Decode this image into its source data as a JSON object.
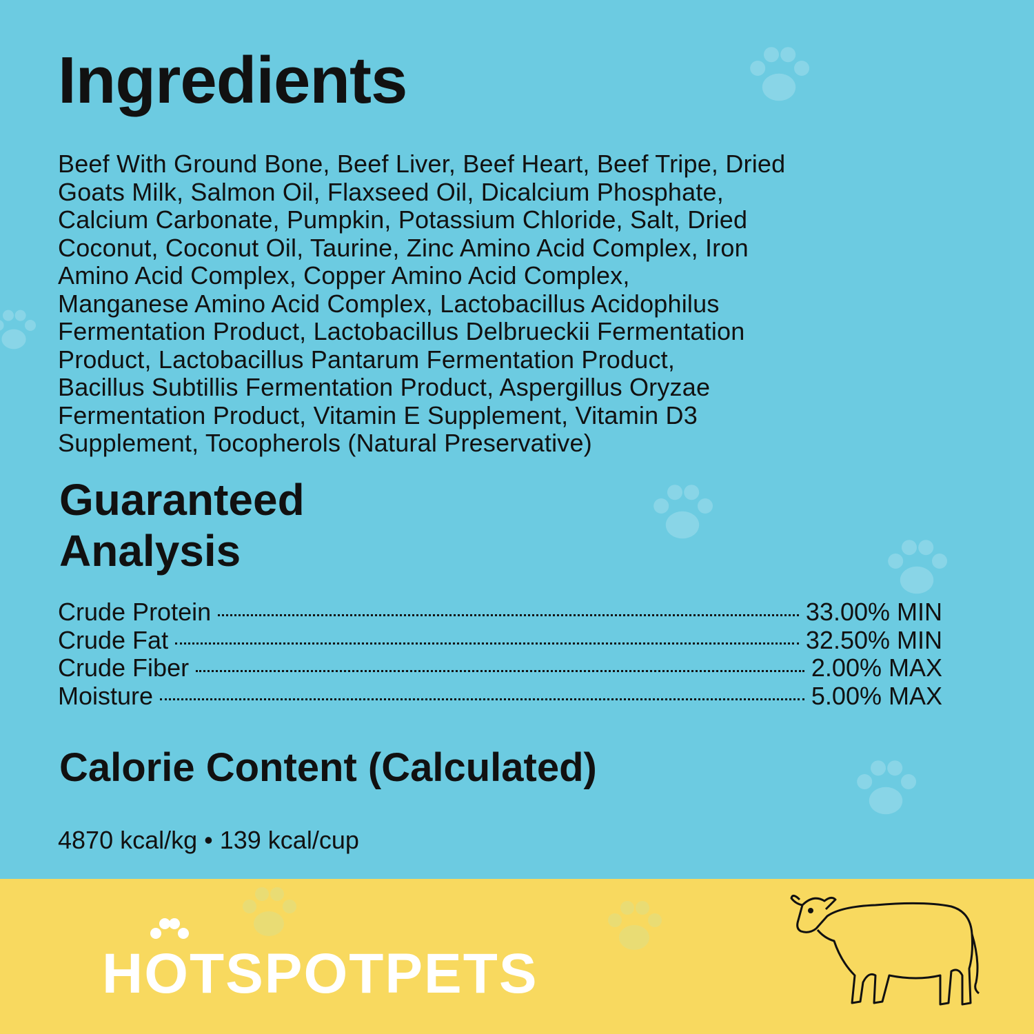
{
  "ingredients": {
    "title": "Ingredients",
    "lines": [
      "Beef With Ground Bone, Beef Liver, Beef Heart, Beef Tripe, Dried",
      "Goats Milk, Salmon Oil, Flaxseed Oil, Dicalcium Phosphate,",
      "Calcium Carbonate, Pumpkin, Potassium Chloride, Salt, Dried",
      "Coconut, Coconut Oil, Taurine, Zinc Amino Acid Complex, Iron",
      "Amino Acid Complex, Copper Amino Acid Complex,",
      "Manganese Amino Acid Complex, Lactobacillus Acidophilus",
      "Fermentation Product, Lactobacillus Delbrueckii Fermentation",
      "Product, Lactobacillus Pantarum Fermentation Product,",
      "Bacillus Subtillis Fermentation Product, Aspergillus Oryzae",
      "Fermentation Product, Vitamin E Supplement, Vitamin D3",
      "Supplement, Tocopherols (Natural Preservative)"
    ]
  },
  "analysis": {
    "title_line1": "Guaranteed",
    "title_line2": "Analysis",
    "rows": [
      {
        "label": "Crude Protein",
        "value": "33.00% MIN"
      },
      {
        "label": "Crude Fat",
        "value": "32.50% MIN"
      },
      {
        "label": "Crude Fiber",
        "value": "2.00% MAX"
      },
      {
        "label": "Moisture",
        "value": "5.00% MAX"
      }
    ]
  },
  "calorie": {
    "title": "Calorie Content (Calculated)",
    "value": "4870 kcal/kg • 139 kcal/cup"
  },
  "footer": {
    "logo_text": "HOTSPOTPETS",
    "illustration": "cow-icon"
  },
  "colors": {
    "background": "#6ccbe1",
    "footer": "#f8d95f",
    "text": "#111111",
    "logo": "#ffffff"
  }
}
